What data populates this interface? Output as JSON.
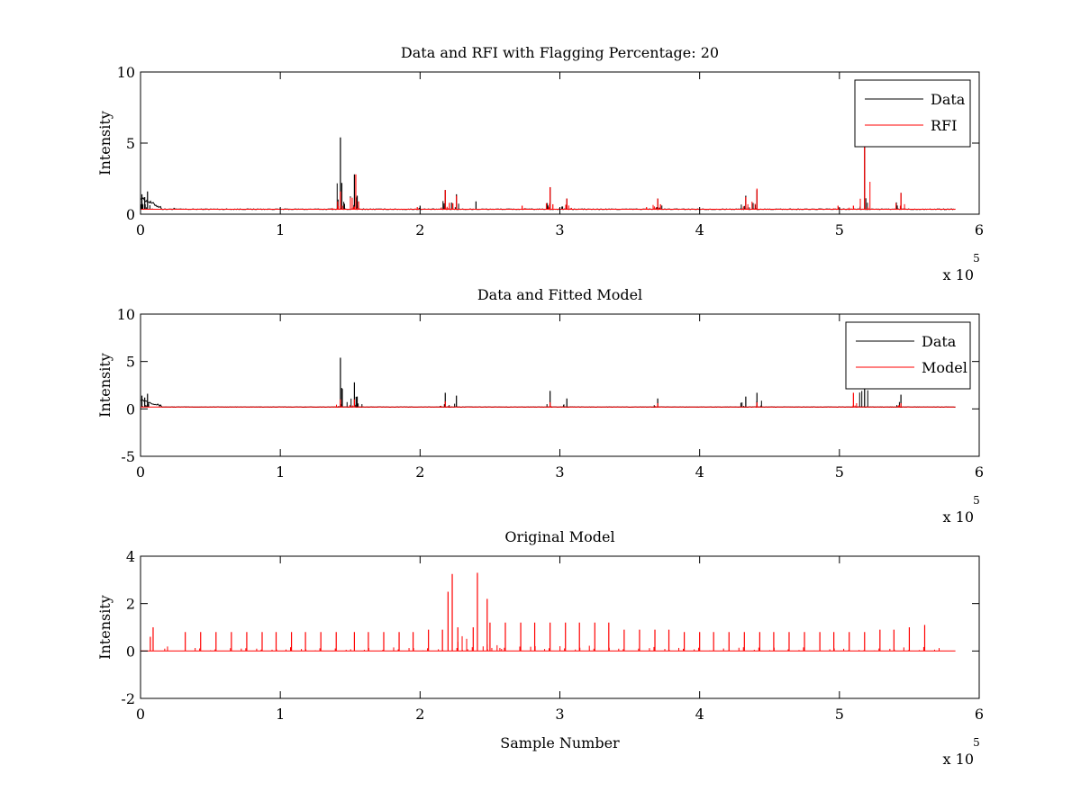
{
  "colors": {
    "data": "#000000",
    "rfi": "#ff0000",
    "model": "#ff0000"
  },
  "chart_data": [
    {
      "type": "line",
      "title": "Data and RFI with Flagging Percentage: 20",
      "xlabel": "",
      "ylabel": "Intensity",
      "xlim": [
        0,
        6
      ],
      "ylim": [
        0,
        10
      ],
      "xticks": [
        0,
        1,
        2,
        3,
        4,
        5,
        6
      ],
      "yticks": [
        0,
        5,
        10
      ],
      "x_exponent": "x 10",
      "x_exponent_power": "5",
      "legend": {
        "placement": "top-right",
        "entries": [
          "Data",
          "RFI"
        ]
      },
      "baseline": 0.35,
      "x_end": 5.83,
      "series": [
        {
          "name": "Data",
          "color": "#000000",
          "peaks": [
            [
              0.01,
              1.4
            ],
            [
              0.03,
              1.2
            ],
            [
              0.05,
              1.6
            ],
            [
              0.24,
              0.45
            ],
            [
              1.43,
              5.4
            ],
            [
              1.44,
              2.2
            ],
            [
              1.53,
              2.8
            ],
            [
              1.55,
              1.3
            ],
            [
              2.0,
              0.6
            ],
            [
              2.18,
              1.7
            ],
            [
              2.26,
              1.4
            ],
            [
              2.4,
              0.9
            ],
            [
              2.93,
              1.9
            ],
            [
              3.05,
              1.1
            ],
            [
              3.7,
              1.1
            ],
            [
              4.33,
              1.3
            ],
            [
              4.41,
              1.7
            ],
            [
              5.18,
              5.0
            ],
            [
              5.44,
              1.5
            ]
          ]
        },
        {
          "name": "RFI",
          "color": "#ff0000",
          "peaks": [
            [
              1.41,
              0.9
            ],
            [
              1.43,
              1.6
            ],
            [
              1.54,
              2.8
            ],
            [
              1.56,
              0.9
            ],
            [
              1.98,
              0.5
            ],
            [
              2.18,
              1.7
            ],
            [
              2.21,
              0.8
            ],
            [
              2.26,
              1.3
            ],
            [
              2.73,
              0.6
            ],
            [
              2.93,
              1.9
            ],
            [
              2.95,
              0.7
            ],
            [
              3.05,
              1.1
            ],
            [
              3.62,
              0.5
            ],
            [
              3.7,
              1.1
            ],
            [
              3.72,
              0.7
            ],
            [
              4.0,
              0.4
            ],
            [
              4.33,
              1.2
            ],
            [
              4.41,
              1.8
            ],
            [
              4.99,
              0.6
            ],
            [
              5.1,
              0.6
            ],
            [
              5.18,
              5.0
            ],
            [
              5.44,
              1.5
            ]
          ]
        }
      ]
    },
    {
      "type": "line",
      "title": "Data and Fitted Model",
      "xlabel": "",
      "ylabel": "Intensity",
      "xlim": [
        0,
        6
      ],
      "ylim": [
        -5,
        10
      ],
      "xticks": [
        0,
        1,
        2,
        3,
        4,
        5,
        6
      ],
      "yticks": [
        -5,
        0,
        5,
        10
      ],
      "x_exponent": "x 10",
      "x_exponent_power": "5",
      "legend": {
        "placement": "top-right",
        "entries": [
          "Data",
          "Model"
        ]
      },
      "baseline": 0.2,
      "x_end": 5.83,
      "series": [
        {
          "name": "Data",
          "color": "#000000",
          "peaks": [
            [
              0.01,
              1.4
            ],
            [
              0.03,
              1.2
            ],
            [
              0.05,
              1.6
            ],
            [
              1.43,
              5.4
            ],
            [
              1.44,
              2.2
            ],
            [
              1.53,
              2.8
            ],
            [
              1.55,
              1.3
            ],
            [
              2.18,
              1.7
            ],
            [
              2.26,
              1.4
            ],
            [
              2.93,
              1.9
            ],
            [
              3.05,
              1.1
            ],
            [
              3.7,
              1.1
            ],
            [
              4.33,
              1.3
            ],
            [
              4.41,
              1.7
            ],
            [
              5.18,
              5.0
            ],
            [
              5.44,
              1.5
            ]
          ]
        },
        {
          "name": "Model",
          "color": "#ff0000",
          "peaks": [
            [
              1.43,
              1.0
            ],
            [
              1.53,
              1.0
            ],
            [
              2.18,
              0.8
            ],
            [
              2.93,
              0.7
            ],
            [
              3.7,
              0.6
            ],
            [
              4.41,
              0.7
            ],
            [
              5.1,
              1.7
            ],
            [
              5.44,
              0.6
            ]
          ]
        }
      ]
    },
    {
      "type": "line",
      "title": "Original Model",
      "xlabel": "Sample Number",
      "ylabel": "Intensity",
      "xlim": [
        0,
        6
      ],
      "ylim": [
        -2,
        4
      ],
      "xticks": [
        0,
        1,
        2,
        3,
        4,
        5,
        6
      ],
      "yticks": [
        -2,
        0,
        2,
        4
      ],
      "x_exponent": "x 10",
      "x_exponent_power": "5",
      "baseline": 0.0,
      "x_end": 5.83,
      "series": [
        {
          "name": "",
          "color": "#ff0000",
          "peaks": [
            [
              0.07,
              0.6
            ],
            [
              0.09,
              1.0
            ],
            [
              0.32,
              0.8
            ],
            [
              0.43,
              0.8
            ],
            [
              0.54,
              0.8
            ],
            [
              0.65,
              0.8
            ],
            [
              0.76,
              0.8
            ],
            [
              0.87,
              0.8
            ],
            [
              0.97,
              0.8
            ],
            [
              1.08,
              0.8
            ],
            [
              1.18,
              0.8
            ],
            [
              1.29,
              0.8
            ],
            [
              1.4,
              0.8
            ],
            [
              1.53,
              0.8
            ],
            [
              1.63,
              0.8
            ],
            [
              1.74,
              0.8
            ],
            [
              1.85,
              0.8
            ],
            [
              1.95,
              0.8
            ],
            [
              2.06,
              0.9
            ],
            [
              2.16,
              0.9
            ],
            [
              2.2,
              2.5
            ],
            [
              2.23,
              3.25
            ],
            [
              2.27,
              1.0
            ],
            [
              2.38,
              1.0
            ],
            [
              2.41,
              3.3
            ],
            [
              2.48,
              2.2
            ],
            [
              2.5,
              1.2
            ],
            [
              2.61,
              1.2
            ],
            [
              2.72,
              1.2
            ],
            [
              2.82,
              1.2
            ],
            [
              2.93,
              1.2
            ],
            [
              3.04,
              1.2
            ],
            [
              3.14,
              1.2
            ],
            [
              3.25,
              1.2
            ],
            [
              3.35,
              1.2
            ],
            [
              3.46,
              0.9
            ],
            [
              3.57,
              0.9
            ],
            [
              3.68,
              0.9
            ],
            [
              3.78,
              0.9
            ],
            [
              3.89,
              0.8
            ],
            [
              4.0,
              0.8
            ],
            [
              4.1,
              0.8
            ],
            [
              4.21,
              0.8
            ],
            [
              4.32,
              0.8
            ],
            [
              4.43,
              0.8
            ],
            [
              4.53,
              0.8
            ],
            [
              4.64,
              0.8
            ],
            [
              4.75,
              0.8
            ],
            [
              4.86,
              0.8
            ],
            [
              4.96,
              0.8
            ],
            [
              5.07,
              0.8
            ],
            [
              5.18,
              0.8
            ],
            [
              5.29,
              0.9
            ],
            [
              5.39,
              0.9
            ],
            [
              5.5,
              1.0
            ],
            [
              5.61,
              1.1
            ]
          ]
        }
      ]
    }
  ]
}
